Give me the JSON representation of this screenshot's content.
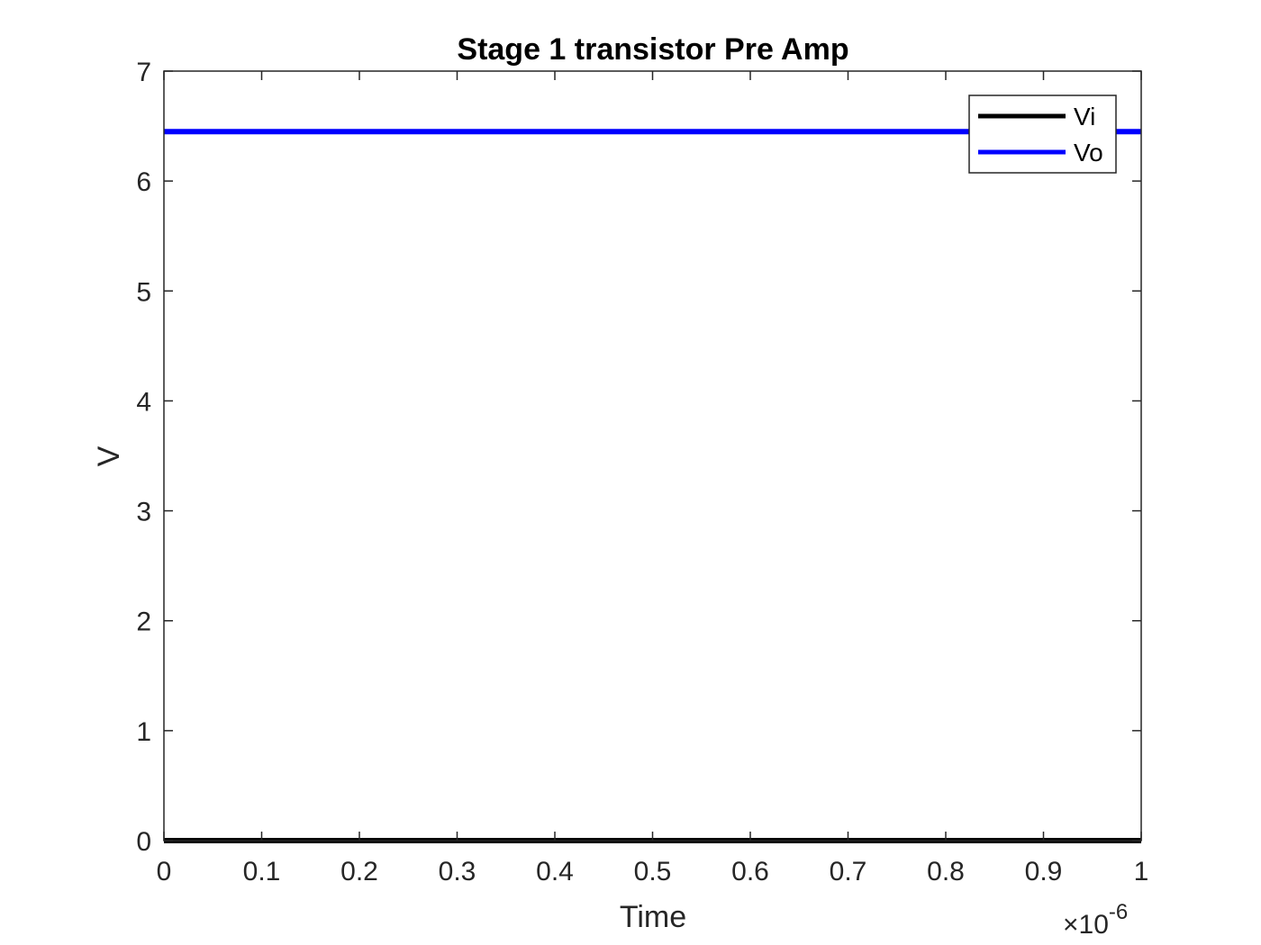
{
  "chart_data": {
    "type": "line",
    "title": "Stage 1 transistor Pre Amp",
    "xlabel": "Time",
    "ylabel": "V",
    "x_multiplier": {
      "times": "×10",
      "exponent": "-6"
    },
    "xlim": [
      0,
      1
    ],
    "ylim": [
      0,
      7
    ],
    "x_ticks": [
      0,
      0.1,
      0.2,
      0.3,
      0.4,
      0.5,
      0.6,
      0.7,
      0.8,
      0.9,
      1
    ],
    "x_tick_labels": [
      "0",
      "0.1",
      "0.2",
      "0.3",
      "0.4",
      "0.5",
      "0.6",
      "0.7",
      "0.8",
      "0.9",
      "1"
    ],
    "y_ticks": [
      0,
      1,
      2,
      3,
      4,
      5,
      6,
      7
    ],
    "y_tick_labels": [
      "0",
      "1",
      "2",
      "3",
      "4",
      "5",
      "6",
      "7"
    ],
    "grid": false,
    "legend_position": "top-right",
    "series": [
      {
        "name": "Vi",
        "color": "#000000",
        "x": [
          0,
          1
        ],
        "y": [
          0,
          0
        ]
      },
      {
        "name": "Vo",
        "color": "#0000ff",
        "x": [
          0,
          1
        ],
        "y": [
          6.45,
          6.45
        ]
      }
    ]
  }
}
